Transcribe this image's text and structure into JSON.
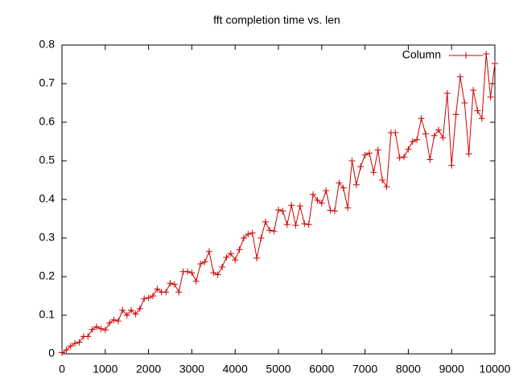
{
  "chart_data": {
    "type": "line",
    "title": "fft completion time vs. len",
    "x": [
      0,
      100,
      200,
      300,
      400,
      500,
      600,
      700,
      800,
      900,
      1000,
      1100,
      1200,
      1300,
      1400,
      1500,
      1600,
      1700,
      1800,
      1900,
      2000,
      2100,
      2200,
      2300,
      2400,
      2500,
      2600,
      2700,
      2800,
      2900,
      3000,
      3100,
      3200,
      3300,
      3400,
      3500,
      3600,
      3700,
      3800,
      3900,
      4000,
      4100,
      4200,
      4300,
      4400,
      4500,
      4600,
      4700,
      4800,
      4900,
      5000,
      5100,
      5200,
      5300,
      5400,
      5500,
      5600,
      5700,
      5800,
      5900,
      6000,
      6100,
      6200,
      6300,
      6400,
      6500,
      6600,
      6700,
      6800,
      6900,
      7000,
      7100,
      7200,
      7300,
      7400,
      7500,
      7600,
      7700,
      7800,
      7900,
      8000,
      8100,
      8200,
      8300,
      8400,
      8500,
      8600,
      8700,
      8800,
      8900,
      9000,
      9100,
      9200,
      9300,
      9400,
      9500,
      9600,
      9700,
      9800,
      9900,
      10000
    ],
    "series": [
      {
        "name": "Column",
        "color": "#cc0000",
        "values": [
          0.003,
          0.01,
          0.02,
          0.027,
          0.03,
          0.045,
          0.045,
          0.063,
          0.07,
          0.065,
          0.062,
          0.08,
          0.088,
          0.085,
          0.113,
          0.1,
          0.113,
          0.103,
          0.117,
          0.143,
          0.145,
          0.15,
          0.168,
          0.16,
          0.16,
          0.183,
          0.18,
          0.16,
          0.213,
          0.213,
          0.21,
          0.188,
          0.233,
          0.238,
          0.265,
          0.21,
          0.205,
          0.225,
          0.25,
          0.26,
          0.243,
          0.27,
          0.3,
          0.31,
          0.313,
          0.248,
          0.3,
          0.342,
          0.32,
          0.318,
          0.373,
          0.37,
          0.335,
          0.385,
          0.333,
          0.383,
          0.337,
          0.335,
          0.413,
          0.398,
          0.39,
          0.423,
          0.372,
          0.37,
          0.443,
          0.43,
          0.378,
          0.5,
          0.438,
          0.485,
          0.515,
          0.52,
          0.47,
          0.528,
          0.45,
          0.433,
          0.573,
          0.573,
          0.508,
          0.51,
          0.53,
          0.55,
          0.555,
          0.61,
          0.57,
          0.503,
          0.565,
          0.58,
          0.56,
          0.675,
          0.488,
          0.62,
          0.718,
          0.65,
          0.518,
          0.683,
          0.63,
          0.61,
          0.777,
          0.665,
          0.752
        ]
      }
    ],
    "xlim": [
      0,
      10000
    ],
    "xticks": [
      0,
      1000,
      2000,
      3000,
      4000,
      5000,
      6000,
      7000,
      8000,
      9000,
      10000
    ],
    "ylim": [
      0,
      0.8
    ],
    "yticks": [
      0,
      0.1,
      0.2,
      0.3,
      0.4,
      0.5,
      0.6,
      0.7,
      0.8
    ],
    "legend": "top-right",
    "grid": false
  }
}
